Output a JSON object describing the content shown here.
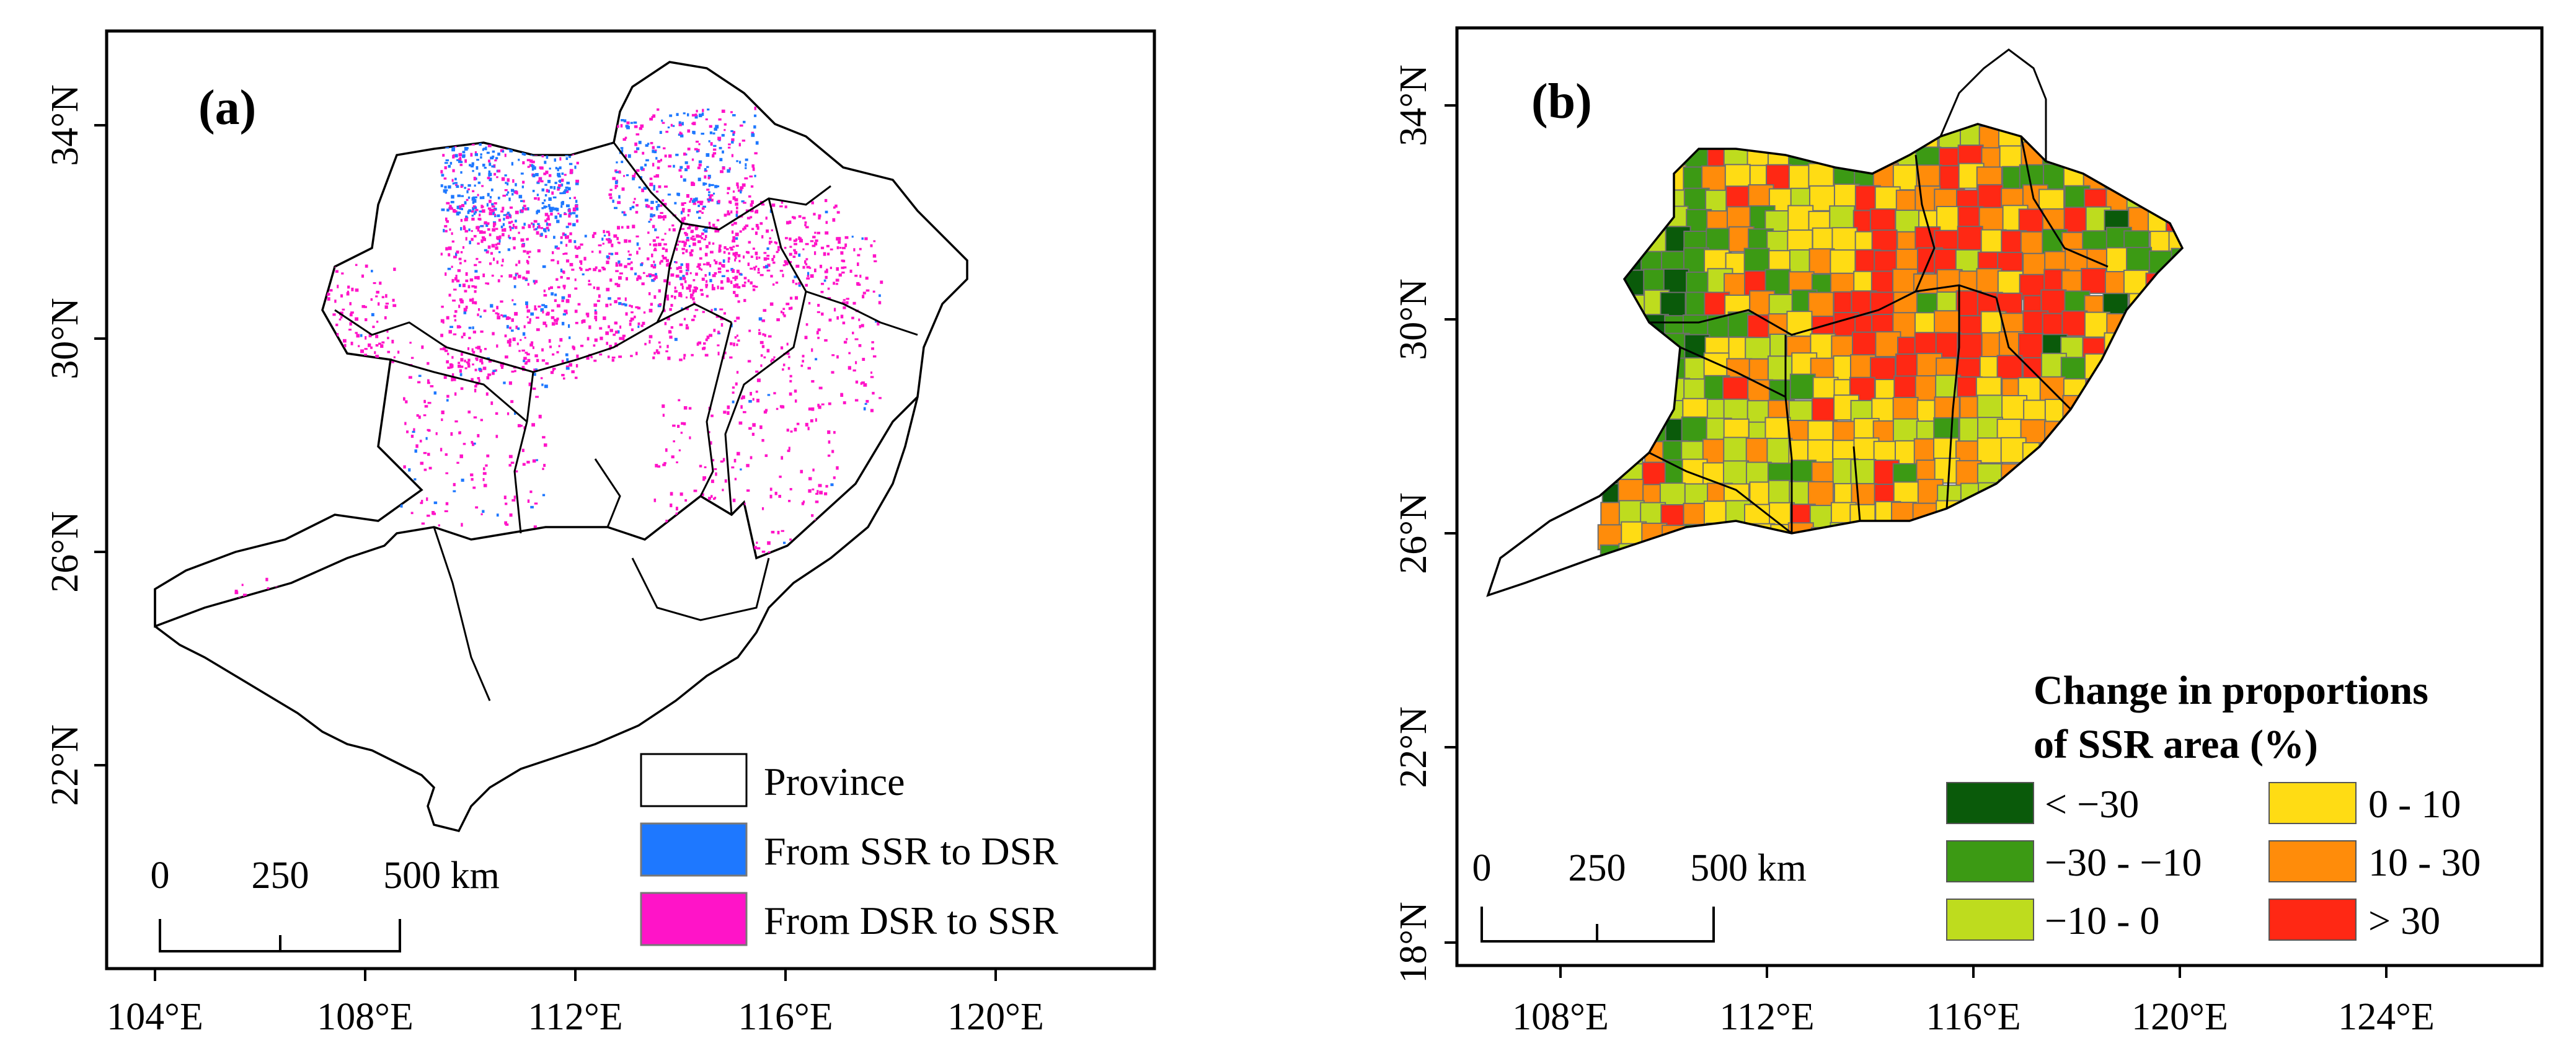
{
  "panel_a": {
    "label": "(a)",
    "x_ticks": [
      "104°E",
      "108°E",
      "112°E",
      "116°E",
      "120°E"
    ],
    "y_ticks": [
      "34°N",
      "30°N",
      "26°N",
      "22°N"
    ],
    "legend": [
      {
        "label": "Province",
        "color": "#ffffff"
      },
      {
        "label": "From SSR to DSR",
        "color": "#1e78ff"
      },
      {
        "label": "From DSR to SSR",
        "color": "#ff14c8"
      }
    ],
    "scale_bar": {
      "ticks": [
        "0",
        "250",
        "500 km"
      ]
    }
  },
  "panel_b": {
    "label": "(b)",
    "x_ticks": [
      "108°E",
      "112°E",
      "116°E",
      "120°E",
      "124°E"
    ],
    "y_ticks": [
      "34°N",
      "30°N",
      "26°N",
      "22°N",
      "18°N"
    ],
    "legend_title_line1": "Change in proportions",
    "legend_title_line2": "of SSR area (%)",
    "legend": [
      {
        "label": "< −30",
        "color": "#0a5a0a"
      },
      {
        "label": "−30 - −10",
        "color": "#3c9a14"
      },
      {
        "label": "−10 - 0",
        "color": "#bedc1e"
      },
      {
        "label": "0 - 10",
        "color": "#ffdc14"
      },
      {
        "label": "10 - 30",
        "color": "#ff8c0a"
      },
      {
        "label": "> 30",
        "color": "#ff2814"
      }
    ],
    "scale_bar": {
      "ticks": [
        "0",
        "250",
        "500 km"
      ]
    }
  },
  "colors": {
    "province_border": "#000000",
    "district_border": "#6e6e6e"
  }
}
